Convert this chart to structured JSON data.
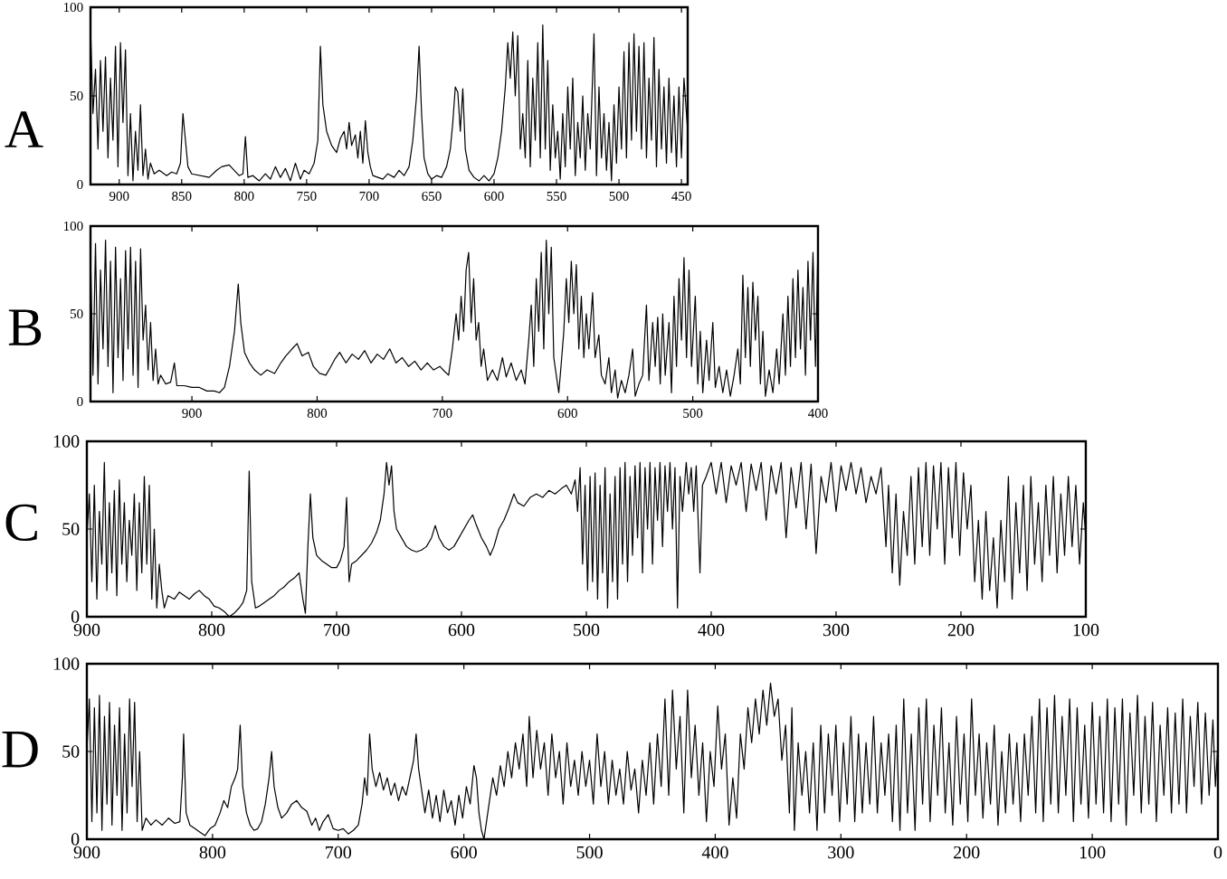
{
  "chart_data": [
    {
      "type": "line",
      "title": "A",
      "color": "#000000",
      "xlim": [
        923,
        445
      ],
      "ylim": [
        0,
        100
      ],
      "xticks": [
        900,
        850,
        800,
        750,
        700,
        650,
        600,
        550,
        500,
        450
      ],
      "yticks": [
        0,
        50,
        100
      ],
      "x": [
        923,
        921,
        919,
        917,
        915,
        913,
        911,
        909,
        907,
        905,
        903,
        901,
        899,
        897,
        895,
        893,
        891,
        889,
        887,
        885,
        883,
        881,
        879,
        877,
        875,
        872,
        868,
        862,
        858,
        854,
        851,
        849,
        847,
        845,
        842,
        835,
        828,
        822,
        818,
        812,
        808,
        804,
        801,
        799,
        797,
        793,
        788,
        783,
        779,
        775,
        771,
        767,
        763,
        759,
        755,
        752,
        748,
        744,
        741,
        739,
        737,
        734,
        730,
        726,
        723,
        720,
        718,
        716,
        714,
        711,
        709,
        707,
        705,
        703,
        701,
        699,
        697,
        693,
        689,
        685,
        680,
        676,
        672,
        668,
        665,
        662,
        660,
        658,
        656,
        653,
        650,
        646,
        642,
        638,
        635,
        633,
        631,
        629,
        627,
        625,
        623,
        620,
        616,
        612,
        608,
        604,
        600,
        597,
        594,
        591,
        589,
        587,
        585,
        583,
        581,
        579,
        577,
        575,
        573,
        571,
        569,
        567,
        565,
        563,
        561,
        559,
        557,
        555,
        553,
        551,
        549,
        547,
        545,
        543,
        541,
        539,
        537,
        535,
        533,
        531,
        529,
        527,
        525,
        523,
        520,
        518,
        516,
        514,
        512,
        510,
        508,
        506,
        504,
        502,
        500,
        498,
        496,
        494,
        492,
        490,
        488,
        486,
        484,
        482,
        480,
        478,
        476,
        474,
        472,
        470,
        468,
        466,
        464,
        462,
        460,
        458,
        456,
        454,
        452,
        450,
        448,
        445
      ],
      "values": [
        90,
        40,
        65,
        20,
        70,
        30,
        72,
        15,
        60,
        25,
        78,
        10,
        80,
        35,
        76,
        5,
        40,
        2,
        30,
        8,
        45,
        5,
        20,
        3,
        12,
        6,
        8,
        5,
        7,
        6,
        12,
        40,
        25,
        10,
        6,
        5,
        4,
        8,
        10,
        11,
        8,
        5,
        6,
        27,
        4,
        5,
        2,
        6,
        3,
        10,
        4,
        9,
        2,
        12,
        3,
        8,
        6,
        12,
        25,
        78,
        45,
        30,
        22,
        18,
        26,
        30,
        20,
        35,
        22,
        28,
        15,
        30,
        12,
        36,
        18,
        10,
        5,
        4,
        3,
        6,
        4,
        8,
        5,
        10,
        25,
        50,
        78,
        40,
        15,
        6,
        3,
        5,
        4,
        10,
        20,
        35,
        55,
        52,
        30,
        54,
        20,
        8,
        4,
        2,
        5,
        2,
        6,
        15,
        30,
        55,
        80,
        60,
        86,
        50,
        84,
        20,
        40,
        15,
        70,
        10,
        60,
        25,
        80,
        15,
        90,
        20,
        70,
        8,
        45,
        15,
        30,
        3,
        40,
        10,
        55,
        20,
        60,
        5,
        35,
        15,
        50,
        8,
        40,
        20,
        85,
        5,
        55,
        15,
        40,
        8,
        35,
        2,
        45,
        12,
        55,
        20,
        75,
        15,
        80,
        25,
        85,
        30,
        78,
        20,
        80,
        15,
        60,
        25,
        83,
        10,
        65,
        20,
        55,
        12,
        60,
        18,
        50,
        10,
        55,
        15,
        60,
        30
      ]
    },
    {
      "type": "line",
      "title": "B",
      "color": "#000000",
      "xlim": [
        981,
        400
      ],
      "ylim": [
        0,
        100
      ],
      "xticks": [
        900,
        800,
        700,
        600,
        500,
        400
      ],
      "yticks": [
        0,
        50,
        100
      ],
      "x": [
        981,
        979,
        977,
        975,
        973,
        971,
        969,
        967,
        965,
        963,
        961,
        959,
        957,
        955,
        953,
        951,
        949,
        947,
        945,
        943,
        941,
        939,
        937,
        935,
        933,
        931,
        929,
        927,
        925,
        921,
        917,
        914,
        912,
        906,
        900,
        894,
        888,
        882,
        878,
        874,
        870,
        866,
        863,
        861,
        858,
        854,
        850,
        845,
        840,
        834,
        829,
        825,
        820,
        816,
        812,
        807,
        803,
        798,
        793,
        789,
        786,
        782,
        777,
        772,
        767,
        762,
        757,
        752,
        747,
        742,
        737,
        732,
        727,
        722,
        717,
        712,
        707,
        702,
        698,
        695,
        692,
        689,
        687,
        685,
        683,
        681,
        679,
        677,
        675,
        673,
        671,
        669,
        667,
        664,
        660,
        656,
        652,
        649,
        645,
        641,
        637,
        634,
        631,
        629,
        627,
        625,
        623,
        621,
        619,
        617,
        615,
        613,
        611,
        609,
        607,
        605,
        603,
        601,
        599,
        597,
        595,
        593,
        591,
        589,
        587,
        585,
        583,
        580,
        578,
        575,
        573,
        570,
        567,
        565,
        562,
        560,
        557,
        554,
        551,
        548,
        546,
        543,
        540,
        537,
        535,
        532,
        530,
        528,
        526,
        524,
        522,
        519,
        517,
        515,
        513,
        511,
        509,
        507,
        505,
        503,
        501,
        498,
        496,
        494,
        492,
        489,
        487,
        484,
        482,
        479,
        476,
        473,
        470,
        467,
        464,
        462,
        460,
        458,
        456,
        454,
        452,
        450,
        448,
        446,
        444,
        442,
        439,
        436,
        433,
        431,
        428,
        426,
        424,
        422,
        420,
        418,
        416,
        414,
        412,
        410,
        408,
        406,
        404,
        402,
        400
      ],
      "values": [
        85,
        15,
        90,
        10,
        75,
        30,
        92,
        20,
        80,
        5,
        88,
        25,
        70,
        12,
        86,
        30,
        88,
        15,
        80,
        8,
        87,
        35,
        55,
        18,
        45,
        12,
        30,
        10,
        15,
        10,
        11,
        22,
        9,
        9,
        8,
        8,
        6,
        6,
        5,
        8,
        20,
        40,
        67,
        45,
        28,
        22,
        18,
        15,
        18,
        16,
        22,
        26,
        30,
        33,
        26,
        28,
        20,
        16,
        15,
        20,
        24,
        28,
        22,
        27,
        24,
        29,
        22,
        27,
        24,
        30,
        22,
        25,
        20,
        23,
        18,
        22,
        18,
        20,
        17,
        15,
        30,
        50,
        35,
        60,
        40,
        75,
        85,
        45,
        70,
        35,
        45,
        20,
        30,
        12,
        18,
        12,
        25,
        14,
        22,
        12,
        18,
        10,
        35,
        55,
        20,
        70,
        40,
        85,
        30,
        92,
        50,
        88,
        25,
        15,
        5,
        22,
        40,
        70,
        45,
        80,
        50,
        78,
        30,
        60,
        25,
        50,
        30,
        62,
        25,
        38,
        15,
        10,
        25,
        5,
        18,
        2,
        12,
        5,
        15,
        30,
        3,
        10,
        15,
        55,
        12,
        45,
        20,
        48,
        10,
        50,
        15,
        45,
        5,
        60,
        20,
        70,
        35,
        82,
        25,
        75,
        20,
        60,
        10,
        40,
        5,
        35,
        12,
        45,
        8,
        20,
        5,
        18,
        3,
        15,
        30,
        10,
        72,
        25,
        65,
        20,
        68,
        35,
        60,
        10,
        40,
        3,
        18,
        5,
        30,
        10,
        50,
        15,
        60,
        20,
        70,
        25,
        75,
        30,
        65,
        15,
        80,
        35,
        85,
        20,
        90
      ]
    },
    {
      "type": "line",
      "title": "C",
      "color": "#000000",
      "xlim": [
        900,
        100
      ],
      "ylim": [
        0,
        100
      ],
      "xticks": [
        900,
        800,
        700,
        600,
        500,
        400,
        300,
        200,
        100
      ],
      "yticks": [
        0,
        50,
        100
      ],
      "x": [
        900,
        898,
        896,
        894,
        892,
        890,
        888,
        886,
        884,
        882,
        880,
        878,
        876,
        874,
        872,
        870,
        868,
        866,
        864,
        862,
        860,
        858,
        856,
        854,
        852,
        850,
        848,
        846,
        844,
        842,
        840,
        838,
        835,
        830,
        826,
        822,
        818,
        814,
        810,
        806,
        802,
        798,
        794,
        790,
        786,
        782,
        778,
        775,
        772,
        770,
        768,
        765,
        762,
        758,
        754,
        750,
        746,
        742,
        738,
        734,
        730,
        727,
        725,
        723,
        721,
        719,
        716,
        712,
        708,
        704,
        700,
        697,
        694,
        692,
        690,
        688,
        684,
        680,
        676,
        672,
        668,
        665,
        662,
        660,
        658,
        656,
        654,
        652,
        648,
        644,
        640,
        636,
        632,
        628,
        624,
        621,
        618,
        614,
        610,
        606,
        602,
        598,
        594,
        591,
        588,
        584,
        580,
        577,
        574,
        570,
        566,
        562,
        558,
        555,
        550,
        545,
        540,
        535,
        530,
        525,
        520,
        516,
        512,
        509,
        507,
        505,
        503,
        501,
        499,
        497,
        495,
        493,
        491,
        489,
        487,
        485,
        483,
        481,
        479,
        477,
        475,
        473,
        471,
        469,
        467,
        465,
        463,
        461,
        459,
        457,
        455,
        453,
        451,
        449,
        447,
        445,
        443,
        441,
        439,
        437,
        435,
        433,
        431,
        429,
        427,
        425,
        423,
        420,
        418,
        416,
        414,
        412,
        409,
        407,
        404,
        400,
        396,
        392,
        388,
        384,
        380,
        376,
        372,
        368,
        364,
        360,
        356,
        352,
        348,
        344,
        340,
        336,
        332,
        328,
        324,
        320,
        316,
        312,
        308,
        304,
        300,
        296,
        292,
        288,
        284,
        280,
        276,
        272,
        268,
        264,
        260,
        258,
        255,
        252,
        249,
        246,
        243,
        240,
        237,
        234,
        231,
        228,
        225,
        222,
        219,
        216,
        213,
        210,
        207,
        204,
        201,
        198,
        195,
        192,
        189,
        186,
        183,
        180,
        177,
        174,
        171,
        168,
        165,
        162,
        159,
        156,
        153,
        150,
        147,
        144,
        141,
        138,
        135,
        132,
        129,
        126,
        123,
        120,
        117,
        114,
        111,
        108,
        105,
        102,
        100
      ],
      "values": [
        45,
        70,
        20,
        75,
        10,
        60,
        30,
        88,
        15,
        65,
        25,
        72,
        12,
        78,
        30,
        65,
        20,
        55,
        35,
        70,
        15,
        65,
        25,
        80,
        30,
        75,
        10,
        50,
        5,
        30,
        15,
        5,
        12,
        10,
        14,
        12,
        10,
        13,
        15,
        12,
        10,
        6,
        5,
        3,
        0,
        2,
        5,
        8,
        15,
        83,
        20,
        5,
        6,
        8,
        10,
        12,
        15,
        17,
        20,
        22,
        25,
        10,
        2,
        40,
        70,
        45,
        35,
        32,
        30,
        28,
        28,
        32,
        40,
        68,
        20,
        30,
        32,
        35,
        38,
        42,
        48,
        55,
        70,
        88,
        75,
        86,
        60,
        50,
        45,
        40,
        38,
        37,
        38,
        40,
        45,
        52,
        45,
        40,
        38,
        40,
        45,
        50,
        55,
        58,
        52,
        45,
        40,
        35,
        40,
        50,
        55,
        62,
        70,
        65,
        63,
        68,
        70,
        68,
        72,
        70,
        73,
        75,
        70,
        78,
        60,
        85,
        30,
        75,
        15,
        80,
        20,
        82,
        10,
        75,
        25,
        85,
        5,
        70,
        20,
        80,
        10,
        85,
        30,
        88,
        20,
        80,
        35,
        86,
        45,
        88,
        25,
        85,
        50,
        88,
        30,
        85,
        55,
        88,
        40,
        86,
        60,
        88,
        50,
        85,
        5,
        80,
        60,
        88,
        70,
        85,
        60,
        86,
        25,
        75,
        80,
        88,
        70,
        88,
        65,
        86,
        75,
        88,
        60,
        87,
        72,
        88,
        55,
        86,
        70,
        88,
        45,
        85,
        62,
        88,
        50,
        87,
        36,
        80,
        65,
        88,
        60,
        86,
        72,
        88,
        70,
        85,
        65,
        80,
        70,
        85,
        40,
        75,
        25,
        70,
        18,
        60,
        35,
        80,
        30,
        85,
        40,
        88,
        35,
        86,
        50,
        88,
        30,
        85,
        45,
        88,
        35,
        82,
        50,
        75,
        20,
        55,
        10,
        60,
        15,
        45,
        5,
        55,
        20,
        80,
        10,
        65,
        25,
        75,
        15,
        80,
        30,
        65,
        20,
        75,
        35,
        80,
        25,
        70,
        35,
        80,
        40,
        75,
        30,
        65,
        45
      ]
    },
    {
      "type": "line",
      "title": "D",
      "color": "#000000",
      "xlim": [
        900,
        0
      ],
      "ylim": [
        0,
        100
      ],
      "xticks": [
        900,
        800,
        700,
        600,
        500,
        400,
        300,
        200,
        100,
        0
      ],
      "yticks": [
        0,
        50,
        100
      ],
      "x": [
        900,
        898,
        896,
        894,
        892,
        890,
        888,
        886,
        884,
        882,
        880,
        878,
        876,
        874,
        872,
        870,
        868,
        866,
        864,
        862,
        860,
        858,
        856,
        853,
        849,
        845,
        840,
        835,
        830,
        826,
        824,
        823,
        821,
        818,
        814,
        810,
        806,
        802,
        798,
        794,
        791,
        788,
        785,
        782,
        780,
        778,
        776,
        773,
        770,
        767,
        764,
        761,
        758,
        755,
        753,
        751,
        748,
        745,
        741,
        737,
        733,
        729,
        725,
        721,
        718,
        715,
        712,
        708,
        704,
        700,
        696,
        692,
        688,
        684,
        681,
        679,
        677,
        675,
        673,
        670,
        667,
        664,
        661,
        658,
        655,
        652,
        649,
        646,
        643,
        640,
        638,
        636,
        634,
        631,
        628,
        625,
        622,
        619,
        616,
        613,
        610,
        607,
        604,
        601,
        598,
        595,
        592,
        590,
        588,
        586,
        584,
        582,
        580,
        577,
        574,
        571,
        568,
        565,
        562,
        559,
        556,
        553,
        550,
        548,
        545,
        542,
        539,
        536,
        533,
        530,
        527,
        524,
        521,
        518,
        515,
        512,
        509,
        506,
        503,
        500,
        497,
        494,
        491,
        488,
        485,
        482,
        479,
        476,
        473,
        470,
        467,
        464,
        461,
        458,
        455,
        452,
        449,
        446,
        443,
        440,
        437,
        434,
        431,
        428,
        425,
        422,
        419,
        416,
        413,
        410,
        407,
        404,
        401,
        398,
        395,
        392,
        389,
        386,
        383,
        380,
        377,
        374,
        371,
        368,
        365,
        362,
        359,
        356,
        353,
        350,
        347,
        344,
        341,
        339,
        337,
        334,
        331,
        328,
        325,
        322,
        319,
        316,
        313,
        310,
        307,
        304,
        301,
        298,
        295,
        292,
        289,
        286,
        283,
        280,
        277,
        274,
        271,
        268,
        265,
        262,
        259,
        256,
        253,
        250,
        247,
        244,
        241,
        238,
        235,
        232,
        229,
        226,
        223,
        220,
        217,
        214,
        211,
        208,
        205,
        202,
        199,
        196,
        193,
        190,
        187,
        184,
        181,
        178,
        175,
        172,
        169,
        166,
        163,
        160,
        157,
        154,
        151,
        148,
        145,
        142,
        139,
        136,
        133,
        130,
        127,
        124,
        121,
        118,
        115,
        112,
        109,
        106,
        103,
        100,
        97,
        94,
        91,
        88,
        85,
        82,
        79,
        76,
        73,
        70,
        67,
        64,
        61,
        58,
        55,
        52,
        49,
        46,
        43,
        40,
        37,
        34,
        31,
        28,
        25,
        22,
        19,
        16,
        13,
        10,
        7,
        4,
        2,
        0
      ],
      "values": [
        50,
        80,
        10,
        75,
        15,
        82,
        5,
        70,
        20,
        78,
        8,
        65,
        25,
        75,
        5,
        60,
        15,
        80,
        30,
        78,
        10,
        50,
        5,
        12,
        8,
        11,
        8,
        12,
        9,
        10,
        35,
        60,
        15,
        8,
        6,
        4,
        2,
        6,
        8,
        15,
        22,
        18,
        30,
        35,
        40,
        65,
        30,
        15,
        8,
        5,
        6,
        10,
        20,
        35,
        50,
        30,
        18,
        12,
        15,
        20,
        22,
        18,
        16,
        8,
        12,
        5,
        10,
        14,
        6,
        5,
        6,
        3,
        5,
        8,
        20,
        35,
        25,
        60,
        40,
        30,
        38,
        28,
        35,
        25,
        32,
        22,
        30,
        25,
        35,
        45,
        60,
        40,
        30,
        15,
        28,
        12,
        25,
        10,
        28,
        15,
        22,
        8,
        25,
        12,
        30,
        20,
        42,
        35,
        15,
        5,
        0,
        10,
        20,
        35,
        25,
        42,
        30,
        50,
        35,
        55,
        40,
        60,
        30,
        70,
        35,
        62,
        40,
        55,
        25,
        60,
        35,
        50,
        20,
        55,
        30,
        45,
        25,
        50,
        30,
        45,
        20,
        60,
        30,
        50,
        20,
        45,
        25,
        40,
        20,
        50,
        28,
        40,
        15,
        45,
        25,
        55,
        20,
        60,
        30,
        80,
        25,
        85,
        40,
        70,
        15,
        85,
        35,
        65,
        25,
        55,
        10,
        50,
        30,
        76,
        40,
        60,
        8,
        35,
        12,
        60,
        40,
        75,
        55,
        80,
        60,
        85,
        65,
        89,
        70,
        80,
        45,
        65,
        15,
        75,
        5,
        55,
        25,
        50,
        15,
        55,
        5,
        65,
        15,
        60,
        25,
        65,
        10,
        55,
        20,
        70,
        10,
        60,
        15,
        55,
        20,
        70,
        15,
        55,
        25,
        60,
        10,
        65,
        5,
        80,
        15,
        60,
        5,
        75,
        20,
        80,
        10,
        65,
        25,
        75,
        15,
        55,
        8,
        70,
        20,
        60,
        10,
        80,
        25,
        60,
        12,
        55,
        20,
        65,
        8,
        50,
        15,
        60,
        20,
        55,
        10,
        60,
        25,
        70,
        15,
        80,
        10,
        75,
        20,
        82,
        15,
        70,
        25,
        80,
        10,
        75,
        20,
        65,
        12,
        78,
        20,
        70,
        15,
        80,
        10,
        75,
        20,
        80,
        8,
        72,
        25,
        82,
        15,
        70,
        20,
        78,
        10,
        65,
        25,
        75,
        15,
        72,
        20,
        80,
        15,
        70,
        30,
        78,
        20,
        72,
        25,
        68,
        30,
        55
      ]
    }
  ]
}
